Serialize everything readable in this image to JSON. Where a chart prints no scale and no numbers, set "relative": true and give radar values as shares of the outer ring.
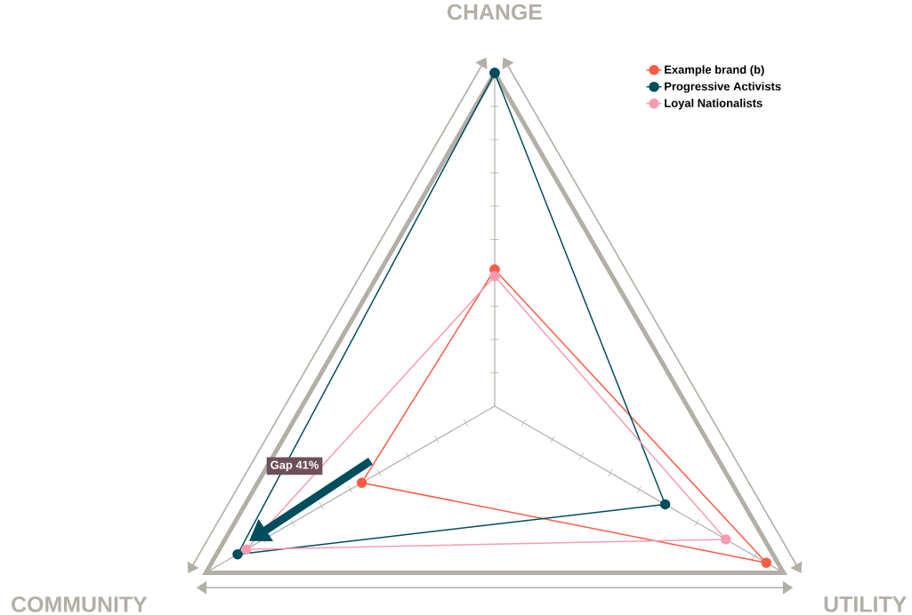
{
  "chart_data": {
    "type": "radar",
    "relative": true,
    "categories": [
      "CHANGE",
      "UTILITY",
      "COMMUNITY"
    ],
    "series": [
      {
        "name": "Example brand (b)",
        "color": "#ff5a45",
        "values": [
          0.41,
          0.94,
          0.46
        ]
      },
      {
        "name": "Progressive Activists",
        "color": "#004d5e",
        "values": [
          1.0,
          0.59,
          0.89
        ]
      },
      {
        "name": "Loyal Nationalists",
        "color": "#f79cb0",
        "values": [
          0.39,
          0.8,
          0.86
        ]
      }
    ],
    "annotations": [
      "Gap 41%"
    ],
    "legend": "top right",
    "marker": "circle",
    "line_style": "solid"
  }
}
